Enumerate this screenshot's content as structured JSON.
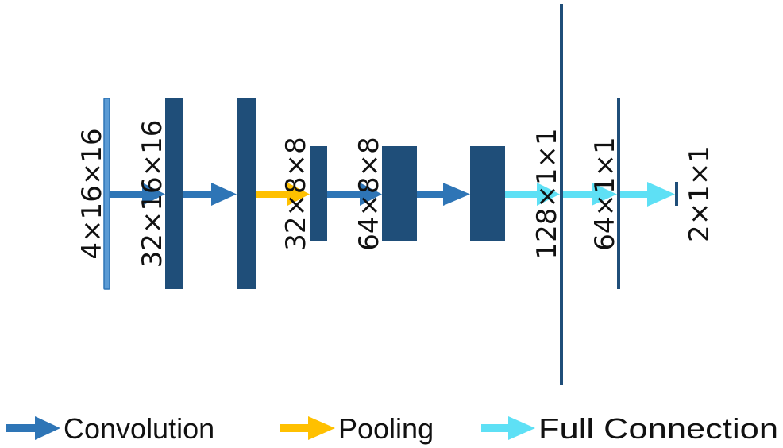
{
  "colors": {
    "layer": "#1f4e79",
    "input_layer": "#5b9bd5",
    "input_border": "#2e75b6",
    "convolution": "#2e75b6",
    "pooling": "#ffc000",
    "full_connection": "#5ee0f5"
  },
  "layers": [
    {
      "id": "input",
      "label": "4×16×16"
    },
    {
      "id": "conv1",
      "label": "32×16×16"
    },
    {
      "id": "conv2",
      "label": ""
    },
    {
      "id": "pool1",
      "label": "32×8×8"
    },
    {
      "id": "conv3",
      "label": "64×8×8"
    },
    {
      "id": "conv4",
      "label": ""
    },
    {
      "id": "fc1",
      "label": "128×1×1"
    },
    {
      "id": "fc2",
      "label": "64×1×1"
    },
    {
      "id": "output",
      "label": "2×1×1"
    }
  ],
  "connections": [
    {
      "type": "convolution"
    },
    {
      "type": "convolution"
    },
    {
      "type": "pooling"
    },
    {
      "type": "convolution"
    },
    {
      "type": "convolution"
    },
    {
      "type": "full_connection"
    },
    {
      "type": "full_connection"
    },
    {
      "type": "full_connection"
    }
  ],
  "legend": [
    {
      "type": "convolution",
      "label": "Convolution"
    },
    {
      "type": "pooling",
      "label": "Pooling"
    },
    {
      "type": "full_connection",
      "label": "Full Connection"
    }
  ]
}
